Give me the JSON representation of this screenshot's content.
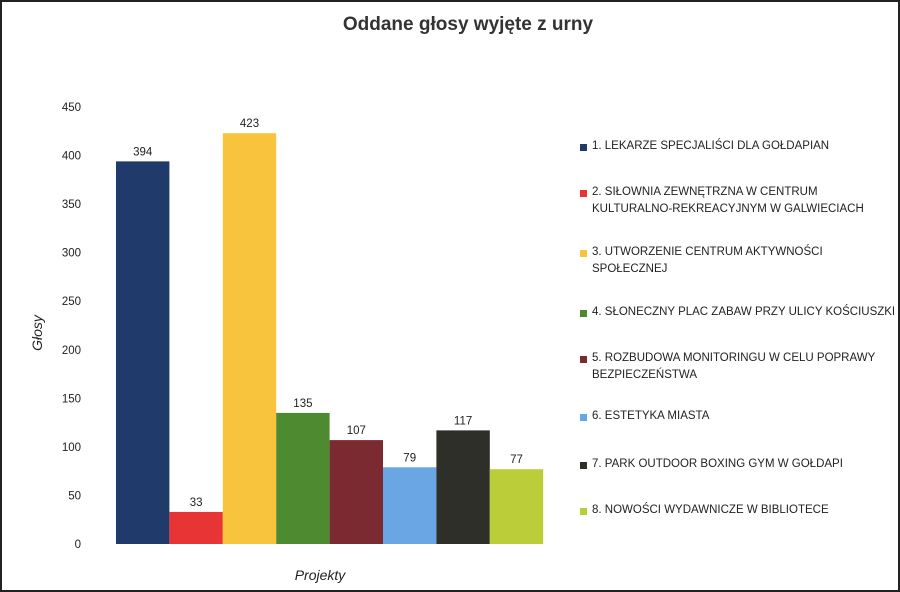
{
  "chart_data": {
    "type": "bar",
    "title": "Oddane głosy wyjęte z urny",
    "xlabel": "Projekty",
    "ylabel": "Głosy",
    "ylim": [
      0,
      450
    ],
    "yticks": [
      "0",
      "50",
      "100",
      "150",
      "200",
      "250",
      "300",
      "350",
      "400",
      "450"
    ],
    "grid": false,
    "legend_position": "right",
    "categories": [
      "1. LEKARZE SPECJALIŚCI DLA GOŁDAPIAN",
      "2. SIŁOWNIA ZEWNĘTRZNA W CENTRUM KULTURALNO-REKREACYJNYM W GALWIECIACH",
      "3. UTWORZENIE CENTRUM AKTYWNOŚCI SPOŁECZNEJ",
      "4. SŁONECZNY PLAC ZABAW PRZY ULICY KOŚCIUSZKI",
      "5. ROZBUDOWA MONITORINGU W CELU POPRAWY BEZPIECZEŃSTWA",
      "6. ESTETYKA MIASTA",
      "7. PARK OUTDOOR BOXING GYM W GOŁDAPI",
      "8. NOWOŚCI WYDAWNICZE W BIBLIOTECE"
    ],
    "values": [
      394,
      33,
      423,
      135,
      107,
      79,
      117,
      77
    ],
    "colors": [
      "#1f3a6b",
      "#e83434",
      "#f8c43e",
      "#4e8a30",
      "#7c2a31",
      "#6aa6e3",
      "#2d2f28",
      "#bccd3a"
    ]
  }
}
